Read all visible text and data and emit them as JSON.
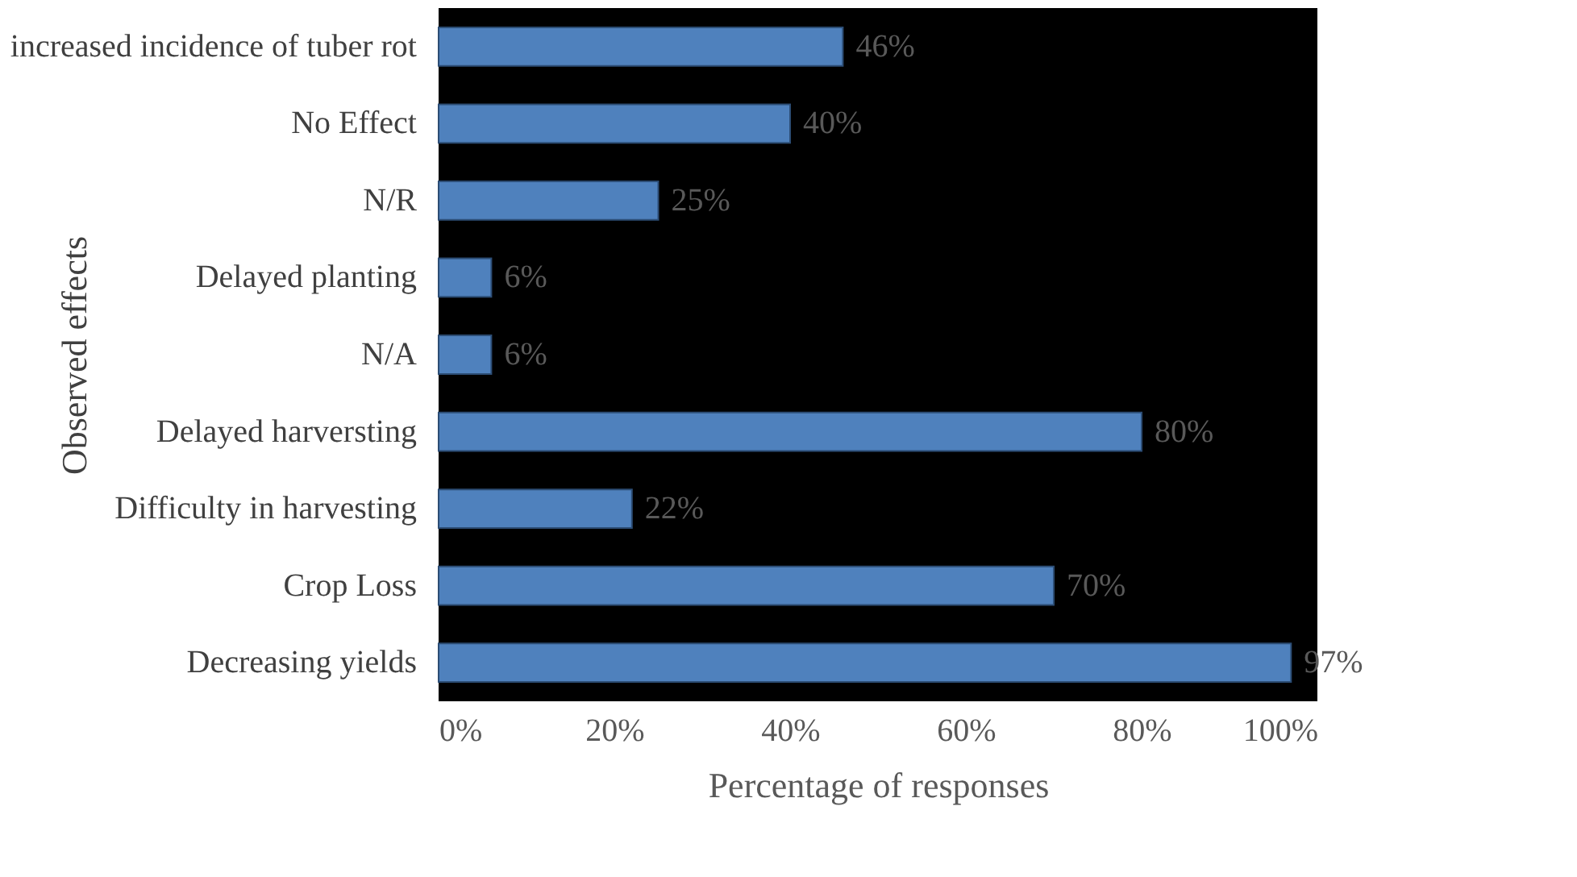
{
  "chart_data": {
    "type": "bar",
    "orientation": "horizontal",
    "xlabel": "Percentage of responses",
    "ylabel": "Observed effects",
    "categories": [
      "increased incidence of tuber rot",
      "No Effect",
      "N/R",
      "Delayed  planting",
      "N/A",
      "Delayed harversting",
      "Difficulty in harvesting",
      "Crop Loss",
      "Decreasing yields"
    ],
    "values": [
      46,
      40,
      25,
      6,
      6,
      80,
      22,
      70,
      97
    ],
    "value_labels": [
      "46%",
      "40%",
      "25%",
      "6%",
      "6%",
      "80%",
      "22%",
      "70%",
      "97%"
    ],
    "color": "#4f81bd",
    "xlim": [
      0,
      100
    ],
    "xticks": [
      {
        "value": 0,
        "label": "0%"
      },
      {
        "value": 20,
        "label": "20%"
      },
      {
        "value": 40,
        "label": "40%"
      },
      {
        "value": 60,
        "label": "60%"
      },
      {
        "value": 80,
        "label": "80%"
      },
      {
        "value": 100,
        "label": "100%"
      }
    ],
    "grid": false
  }
}
